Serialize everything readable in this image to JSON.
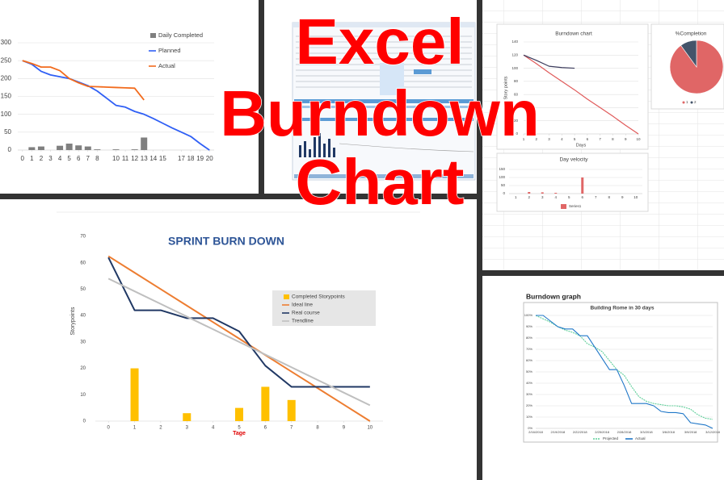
{
  "overlay_title": [
    "Excel",
    "Burndown",
    "Chart"
  ],
  "chart_data": [
    {
      "type": "combo",
      "x": [
        0,
        1,
        2,
        3,
        4,
        5,
        6,
        7,
        8,
        9,
        10,
        11,
        12,
        13,
        14,
        15,
        16,
        17,
        18,
        19,
        20
      ],
      "xlim": [
        -0.5,
        20.5
      ],
      "xticks": [
        0,
        1,
        2,
        3,
        4,
        5,
        6,
        7,
        8,
        10,
        11,
        12,
        13,
        14,
        15,
        17,
        18,
        19,
        20
      ],
      "ylim": [
        0,
        300
      ],
      "yticks": [
        0,
        50,
        100,
        150,
        200,
        250,
        300
      ],
      "grid": true,
      "series": [
        {
          "name": "Daily Completed",
          "type": "bar",
          "color": "#7f7f7f",
          "values": [
            0,
            8,
            10,
            0,
            12,
            18,
            13,
            10,
            2,
            0,
            2,
            0,
            2,
            35,
            0,
            0,
            0,
            0,
            0,
            0,
            0
          ]
        },
        {
          "name": "Planned",
          "type": "line",
          "color": "#2f5ff5",
          "values": [
            250,
            240,
            220,
            210,
            205,
            200,
            190,
            180,
            165,
            145,
            125,
            120,
            108,
            100,
            88,
            75,
            62,
            50,
            38,
            18,
            0
          ]
        },
        {
          "name": "Actual",
          "type": "line",
          "color": "#f26b1d",
          "values": [
            250,
            242,
            232,
            232,
            222,
            200,
            188,
            178,
            177,
            176,
            175,
            174,
            173,
            140,
            null,
            null,
            null,
            null,
            null,
            null,
            null
          ]
        }
      ]
    },
    {
      "type": "line",
      "title": "Burndown chart",
      "x_label": "Days",
      "y_label": "Story points",
      "x": [
        1,
        2,
        3,
        4,
        5,
        6,
        7,
        8,
        9,
        10
      ],
      "xlim": [
        1,
        10
      ],
      "xticks": [
        1,
        2,
        3,
        4,
        5,
        6,
        7,
        8,
        9,
        10
      ],
      "ylim": [
        0,
        140
      ],
      "yticks": [
        0,
        20,
        40,
        60,
        80,
        100,
        120,
        140
      ],
      "grid": true,
      "series": [
        {
          "type": "line",
          "color": "#e05a5a",
          "values": [
            120,
            107,
            93,
            80,
            67,
            53,
            40,
            27,
            13,
            0
          ]
        },
        {
          "type": "line",
          "color": "#3b3b5c",
          "values": [
            120,
            112,
            103,
            101,
            100,
            null,
            null,
            null,
            null,
            null
          ]
        }
      ]
    },
    {
      "type": "pie",
      "title": "%Completion",
      "categories": [
        "1",
        "2"
      ],
      "values": [
        90,
        10
      ],
      "colors": [
        "#e06666",
        "#44546a"
      ]
    },
    {
      "type": "bar",
      "title": "Day velocity",
      "categories": [
        "1",
        "2",
        "3",
        "4",
        "5",
        "6",
        "7",
        "8",
        "9",
        "10"
      ],
      "ylim": [
        0,
        150
      ],
      "yticks": [
        0,
        50,
        100,
        150
      ],
      "grid": true,
      "series": [
        {
          "name": "Series1",
          "type": "bar",
          "color": "#e06666",
          "values": [
            0,
            10,
            8,
            5,
            0,
            100,
            0,
            0,
            0,
            0
          ]
        }
      ]
    },
    {
      "type": "combo",
      "title": "SPRINT BURN DOWN",
      "x_label": "Tage",
      "y_label": "Storypoints",
      "x": [
        0,
        1,
        2,
        3,
        4,
        5,
        6,
        7,
        8,
        9,
        10
      ],
      "xlim": [
        -0.5,
        10.5
      ],
      "xticks": [
        0,
        1,
        2,
        3,
        4,
        5,
        6,
        7,
        8,
        9,
        10
      ],
      "ylim": [
        0,
        70
      ],
      "yticks": [
        0,
        10,
        20,
        30,
        40,
        50,
        60,
        70
      ],
      "grid": false,
      "series": [
        {
          "name": "Completed Storypoints",
          "type": "bar",
          "color": "#ffc000",
          "values": [
            0,
            20,
            0,
            3,
            0,
            5,
            13,
            8,
            0,
            0,
            0
          ]
        },
        {
          "name": "Ideal line",
          "type": "line",
          "color": "#ed7d31",
          "values": [
            62.5,
            56.25,
            50,
            43.75,
            37.5,
            31.25,
            25,
            18.75,
            12.5,
            6.25,
            0
          ]
        },
        {
          "name": "Real course",
          "type": "line",
          "color": "#203864",
          "values": [
            62,
            42,
            42,
            39,
            39,
            34,
            21,
            13,
            13,
            13,
            13
          ]
        },
        {
          "name": "Trendline",
          "type": "line",
          "color": "#bfbfbf",
          "values": [
            54,
            49.2,
            44.4,
            39.6,
            34.8,
            30,
            25.2,
            20.4,
            15.6,
            10.8,
            6
          ]
        }
      ]
    },
    {
      "type": "line",
      "heading": "Burndown graph",
      "title": "Building Rome in 30 days",
      "categories": [
        "2/16/2018",
        null,
        null,
        "2/19/2018",
        null,
        null,
        "2/22/2018",
        null,
        null,
        "2/25/2018",
        null,
        null,
        "2/28/2018",
        null,
        null,
        "3/3/2018",
        null,
        null,
        "3/6/2018",
        null,
        null,
        "3/9/2018",
        null,
        null,
        "3/12/2018"
      ],
      "ylim": [
        0,
        100
      ],
      "grid": true,
      "yticks": [
        {
          "value": 0,
          "label": "0%"
        },
        {
          "value": 10,
          "label": "10%"
        },
        {
          "value": 20,
          "label": "20%"
        },
        {
          "value": 30,
          "label": "30%"
        },
        {
          "value": 40,
          "label": "40%"
        },
        {
          "value": 50,
          "label": "50%"
        },
        {
          "value": 60,
          "label": "60%"
        },
        {
          "value": 70,
          "label": "70%"
        },
        {
          "value": 80,
          "label": "80%"
        },
        {
          "value": 90,
          "label": "90%"
        },
        {
          "value": 100,
          "label": "100%"
        }
      ],
      "series": [
        {
          "name": "Projected",
          "type": "line",
          "dashed": true,
          "color": "#5fcf9a",
          "values": [
            100,
            97,
            94,
            90,
            87,
            85,
            82,
            75,
            72,
            68,
            60,
            52,
            47,
            37,
            28,
            24,
            22,
            21,
            20,
            20,
            19,
            17,
            12,
            9,
            8
          ]
        },
        {
          "name": "Actual",
          "type": "line",
          "color": "#1f77c8",
          "values": [
            100,
            100,
            95,
            90,
            88,
            88,
            82,
            82,
            72,
            62,
            52,
            52,
            38,
            22,
            22,
            22,
            20,
            15,
            14,
            14,
            13,
            5,
            4,
            3,
            0
          ]
        }
      ]
    }
  ]
}
